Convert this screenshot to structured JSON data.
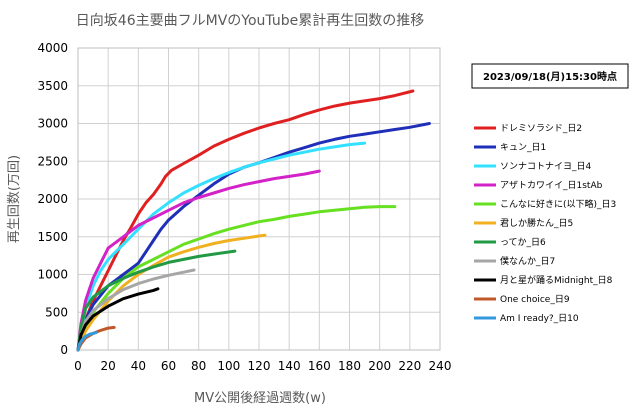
{
  "chart_data": {
    "type": "line",
    "title": "日向坂46主要曲フルMVのYouTube累計再生回数の推移",
    "date_label": "2023/09/18(月)15:30時点",
    "xlabel": "MV公開後経過週数(w)",
    "ylabel": "再生回数(万回)",
    "xlim": [
      0,
      240
    ],
    "ylim": [
      0,
      4000
    ],
    "x_ticks": [
      "0",
      "20",
      "40",
      "60",
      "80",
      "100",
      "120",
      "140",
      "160",
      "180",
      "200",
      "220",
      "240"
    ],
    "y_ticks": [
      "0",
      "500",
      "1000",
      "1500",
      "2000",
      "2500",
      "3000",
      "3500",
      "4000"
    ],
    "grid": true,
    "legend_position": "right",
    "series": [
      {
        "name": "ドレミソラシド_日2",
        "color": "#e02020",
        "points": [
          [
            0,
            0
          ],
          [
            2,
            150
          ],
          [
            5,
            400
          ],
          [
            10,
            650
          ],
          [
            15,
            850
          ],
          [
            20,
            1050
          ],
          [
            25,
            1250
          ],
          [
            30,
            1450
          ],
          [
            35,
            1620
          ],
          [
            40,
            1800
          ],
          [
            45,
            1950
          ],
          [
            50,
            2060
          ],
          [
            55,
            2200
          ],
          [
            58,
            2300
          ],
          [
            62,
            2380
          ],
          [
            70,
            2470
          ],
          [
            80,
            2580
          ],
          [
            90,
            2700
          ],
          [
            100,
            2790
          ],
          [
            110,
            2870
          ],
          [
            120,
            2940
          ],
          [
            130,
            3000
          ],
          [
            140,
            3050
          ],
          [
            150,
            3120
          ],
          [
            160,
            3180
          ],
          [
            170,
            3230
          ],
          [
            180,
            3270
          ],
          [
            190,
            3300
          ],
          [
            200,
            3330
          ],
          [
            210,
            3370
          ],
          [
            222,
            3430
          ]
        ]
      },
      {
        "name": "キュン_日1",
        "color": "#1f2fb8",
        "points": [
          [
            0,
            0
          ],
          [
            2,
            200
          ],
          [
            5,
            400
          ],
          [
            10,
            600
          ],
          [
            20,
            850
          ],
          [
            30,
            1000
          ],
          [
            40,
            1150
          ],
          [
            45,
            1300
          ],
          [
            50,
            1450
          ],
          [
            55,
            1600
          ],
          [
            60,
            1720
          ],
          [
            70,
            1900
          ],
          [
            80,
            2050
          ],
          [
            90,
            2200
          ],
          [
            100,
            2330
          ],
          [
            110,
            2420
          ],
          [
            120,
            2480
          ],
          [
            130,
            2550
          ],
          [
            140,
            2620
          ],
          [
            150,
            2680
          ],
          [
            160,
            2740
          ],
          [
            170,
            2790
          ],
          [
            180,
            2830
          ],
          [
            190,
            2860
          ],
          [
            200,
            2890
          ],
          [
            210,
            2920
          ],
          [
            220,
            2950
          ],
          [
            233,
            3000
          ]
        ]
      },
      {
        "name": "ソンナコトナイヨ_日4",
        "color": "#33e0ff",
        "points": [
          [
            0,
            0
          ],
          [
            2,
            250
          ],
          [
            5,
            550
          ],
          [
            10,
            850
          ],
          [
            15,
            1050
          ],
          [
            20,
            1200
          ],
          [
            30,
            1400
          ],
          [
            40,
            1600
          ],
          [
            50,
            1800
          ],
          [
            60,
            1950
          ],
          [
            70,
            2080
          ],
          [
            80,
            2180
          ],
          [
            90,
            2270
          ],
          [
            100,
            2350
          ],
          [
            110,
            2420
          ],
          [
            120,
            2480
          ],
          [
            130,
            2530
          ],
          [
            140,
            2580
          ],
          [
            150,
            2620
          ],
          [
            160,
            2660
          ],
          [
            170,
            2690
          ],
          [
            180,
            2720
          ],
          [
            190,
            2740
          ]
        ]
      },
      {
        "name": "アザトカワイイ_日1stAb",
        "color": "#d322c8",
        "points": [
          [
            0,
            0
          ],
          [
            2,
            350
          ],
          [
            5,
            650
          ],
          [
            10,
            950
          ],
          [
            15,
            1150
          ],
          [
            20,
            1350
          ],
          [
            30,
            1500
          ],
          [
            40,
            1650
          ],
          [
            50,
            1750
          ],
          [
            60,
            1850
          ],
          [
            70,
            1950
          ],
          [
            80,
            2020
          ],
          [
            90,
            2080
          ],
          [
            100,
            2140
          ],
          [
            110,
            2190
          ],
          [
            120,
            2230
          ],
          [
            130,
            2270
          ],
          [
            140,
            2300
          ],
          [
            150,
            2330
          ],
          [
            160,
            2370
          ]
        ]
      },
      {
        "name": "こんなに好きに(以下略)_日3",
        "color": "#66e020",
        "points": [
          [
            0,
            0
          ],
          [
            2,
            150
          ],
          [
            5,
            300
          ],
          [
            10,
            500
          ],
          [
            20,
            750
          ],
          [
            30,
            950
          ],
          [
            40,
            1100
          ],
          [
            50,
            1200
          ],
          [
            60,
            1300
          ],
          [
            70,
            1400
          ],
          [
            80,
            1470
          ],
          [
            90,
            1540
          ],
          [
            100,
            1600
          ],
          [
            110,
            1650
          ],
          [
            120,
            1700
          ],
          [
            130,
            1730
          ],
          [
            140,
            1770
          ],
          [
            150,
            1800
          ],
          [
            160,
            1830
          ],
          [
            170,
            1850
          ],
          [
            180,
            1870
          ],
          [
            190,
            1890
          ],
          [
            200,
            1900
          ],
          [
            210,
            1900
          ]
        ]
      },
      {
        "name": "君しか勝たん_日5",
        "color": "#f0b020",
        "points": [
          [
            0,
            0
          ],
          [
            2,
            120
          ],
          [
            5,
            250
          ],
          [
            10,
            400
          ],
          [
            20,
            650
          ],
          [
            30,
            850
          ],
          [
            40,
            1000
          ],
          [
            50,
            1120
          ],
          [
            60,
            1230
          ],
          [
            70,
            1300
          ],
          [
            80,
            1360
          ],
          [
            90,
            1410
          ],
          [
            100,
            1450
          ],
          [
            110,
            1480
          ],
          [
            120,
            1510
          ],
          [
            124,
            1520
          ]
        ]
      },
      {
        "name": "ってか_日6",
        "color": "#229944",
        "points": [
          [
            0,
            0
          ],
          [
            2,
            300
          ],
          [
            5,
            550
          ],
          [
            10,
            700
          ],
          [
            20,
            850
          ],
          [
            30,
            950
          ],
          [
            40,
            1030
          ],
          [
            50,
            1100
          ],
          [
            60,
            1160
          ],
          [
            70,
            1200
          ],
          [
            80,
            1240
          ],
          [
            90,
            1270
          ],
          [
            104,
            1310
          ]
        ]
      },
      {
        "name": "僕なんか_日7",
        "color": "#a6a6a6",
        "points": [
          [
            0,
            0
          ],
          [
            2,
            200
          ],
          [
            5,
            380
          ],
          [
            10,
            520
          ],
          [
            20,
            680
          ],
          [
            30,
            800
          ],
          [
            40,
            880
          ],
          [
            50,
            940
          ],
          [
            60,
            990
          ],
          [
            70,
            1030
          ],
          [
            77,
            1060
          ]
        ]
      },
      {
        "name": "月と星が踊るMidnight_日8",
        "color": "#000000",
        "points": [
          [
            0,
            0
          ],
          [
            2,
            200
          ],
          [
            5,
            330
          ],
          [
            10,
            450
          ],
          [
            20,
            580
          ],
          [
            30,
            680
          ],
          [
            40,
            740
          ],
          [
            50,
            790
          ],
          [
            53,
            810
          ]
        ]
      },
      {
        "name": "One choice_日9",
        "color": "#c0582a",
        "points": [
          [
            0,
            0
          ],
          [
            2,
            80
          ],
          [
            5,
            160
          ],
          [
            10,
            220
          ],
          [
            15,
            260
          ],
          [
            20,
            290
          ],
          [
            24,
            300
          ]
        ]
      },
      {
        "name": "Am I ready?_日10",
        "color": "#3399dd",
        "points": [
          [
            0,
            0
          ],
          [
            1,
            80
          ],
          [
            3,
            140
          ],
          [
            5,
            180
          ],
          [
            8,
            210
          ],
          [
            10,
            220
          ],
          [
            12,
            230
          ]
        ]
      }
    ]
  }
}
